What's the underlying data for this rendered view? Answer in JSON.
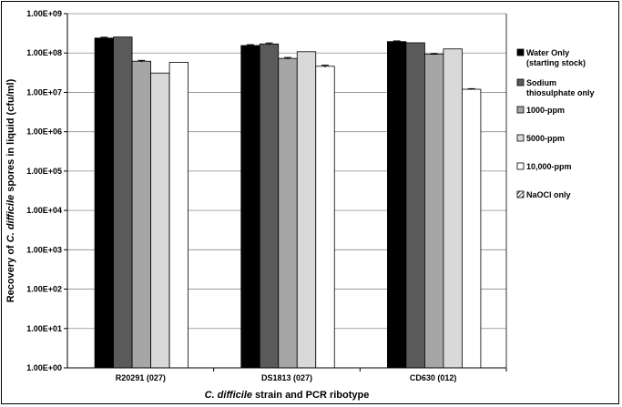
{
  "chart_data": {
    "type": "bar",
    "y_scale": "log",
    "ylim": [
      1,
      1000000000
    ],
    "y_ticks": [
      "1.00E+00",
      "1.00E+01",
      "1.00E+02",
      "1.00E+03",
      "1.00E+04",
      "1.00E+05",
      "1.00E+06",
      "1.00E+07",
      "1.00E+08",
      "1.00E+09"
    ],
    "categories": [
      "R20291 (027)",
      "DS1813 (027)",
      "CD630 (012)"
    ],
    "ylabel_parts": [
      "Recovery of ",
      "C. difficile",
      " spores in liquid (cfu/ml)"
    ],
    "xlabel_parts": [
      "C. difficile",
      " strain and PCR ribotype"
    ],
    "grid": "horizontal",
    "legend_position": "right",
    "series": [
      {
        "name": "Water Only (starting stock)",
        "legend_lines": [
          "Water Only",
          "(starting stock)"
        ],
        "color": "#000000",
        "pattern": "solid",
        "values": [
          240000000,
          155000000,
          195000000
        ],
        "errors": [
          12000000,
          8000000,
          8000000
        ]
      },
      {
        "name": "Sodium thiosulphate only",
        "legend_lines": [
          "Sodium",
          "thiosulphate only"
        ],
        "color": "#5a5a5a",
        "pattern": "solid",
        "values": [
          255000000,
          170000000,
          182000000
        ],
        "errors": [
          0,
          10000000,
          0
        ]
      },
      {
        "name": "1000-ppm",
        "legend_lines": [
          "1000-ppm"
        ],
        "color": "#a6a6a6",
        "pattern": "solid",
        "values": [
          62000000,
          73000000,
          93000000
        ],
        "errors": [
          3000000,
          4000000,
          3000000
        ]
      },
      {
        "name": "5000-ppm",
        "legend_lines": [
          "5000-ppm"
        ],
        "color": "#d9d9d9",
        "pattern": "solid",
        "values": [
          31000000,
          108000000,
          127000000
        ],
        "errors": [
          0,
          0,
          0
        ]
      },
      {
        "name": "10,000-ppm",
        "legend_lines": [
          "10,000-ppm"
        ],
        "color": "#ffffff",
        "pattern": "solid",
        "values": [
          58000000,
          46000000,
          12000000
        ],
        "errors": [
          0,
          3000000,
          400000
        ]
      },
      {
        "name": "NaOCl only",
        "legend_lines": [
          "NaOCl only"
        ],
        "color": "#ffffff",
        "pattern": "hatch",
        "values": [
          null,
          null,
          null
        ],
        "errors": [
          0,
          0,
          0
        ]
      }
    ]
  }
}
